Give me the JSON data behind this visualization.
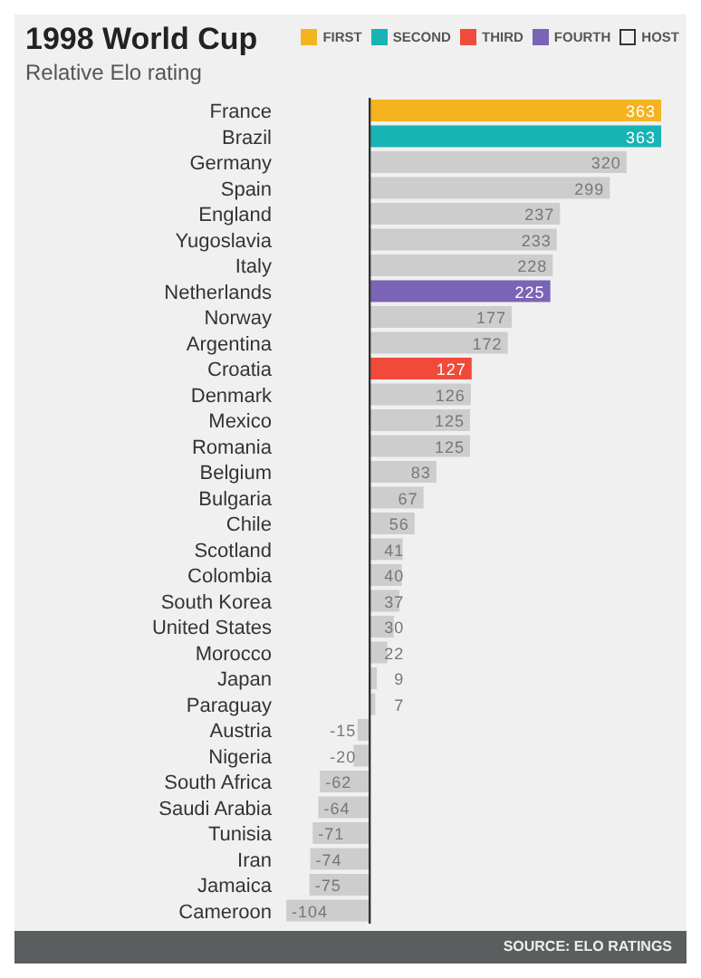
{
  "chart_data": {
    "type": "bar",
    "orientation": "horizontal",
    "stacked": true,
    "title": "1998 World Cup",
    "subtitle": "Relative Elo rating",
    "categories": [
      "France",
      "Brazil",
      "Germany",
      "Spain",
      "England",
      "Yugoslavia",
      "Italy",
      "Netherlands",
      "Norway",
      "Argentina",
      "Croatia",
      "Denmark",
      "Mexico",
      "Romania",
      "Belgium",
      "Bulgaria",
      "Chile",
      "Scotland",
      "Colombia",
      "South Korea",
      "United States",
      "Morocco",
      "Japan",
      "Paraguay",
      "Austria",
      "Nigeria",
      "South Africa",
      "Saudi Arabia",
      "Tunisia",
      "Iran",
      "Jamaica",
      "Cameroon"
    ],
    "series": [
      {
        "name": "FIRST",
        "color": "#f5b320",
        "values": [
          363,
          null,
          null,
          null,
          null,
          null,
          null,
          null,
          null,
          null,
          null,
          null,
          null,
          null,
          null,
          null,
          null,
          null,
          null,
          null,
          null,
          null,
          null,
          null,
          null,
          null,
          null,
          null,
          null,
          null,
          null,
          null
        ]
      },
      {
        "name": "SECOND",
        "color": "#17b3b5",
        "values": [
          null,
          363,
          null,
          null,
          null,
          null,
          null,
          null,
          null,
          null,
          null,
          null,
          null,
          null,
          null,
          null,
          null,
          null,
          null,
          null,
          null,
          null,
          null,
          null,
          null,
          null,
          null,
          null,
          null,
          null,
          null,
          null
        ]
      },
      {
        "name": "THIRD",
        "color": "#f04a3b",
        "values": [
          null,
          null,
          null,
          null,
          null,
          null,
          null,
          null,
          null,
          null,
          127,
          null,
          null,
          null,
          null,
          null,
          null,
          null,
          null,
          null,
          null,
          null,
          null,
          null,
          null,
          null,
          null,
          null,
          null,
          null,
          null,
          null
        ]
      },
      {
        "name": "FOURTH",
        "color": "#7a64b6",
        "values": [
          null,
          null,
          null,
          null,
          null,
          null,
          null,
          225,
          null,
          null,
          null,
          null,
          null,
          null,
          null,
          null,
          null,
          null,
          null,
          null,
          null,
          null,
          null,
          null,
          null,
          null,
          null,
          null,
          null,
          null,
          null,
          null
        ]
      },
      {
        "color": "#cdcdcd",
        "values": [
          null,
          null,
          320,
          299,
          237,
          233,
          228,
          null,
          177,
          172,
          null,
          126,
          125,
          125,
          83,
          67,
          56,
          41,
          40,
          37,
          30,
          22,
          9,
          7,
          -15,
          -20,
          -62,
          -64,
          -71,
          -74,
          -75,
          -104
        ]
      }
    ],
    "data_labels": true,
    "legend": "top right",
    "tick_labels": "y",
    "grid": false,
    "annotations": [
      "HOST",
      "SOURCE: ELO RATINGS"
    ]
  }
}
